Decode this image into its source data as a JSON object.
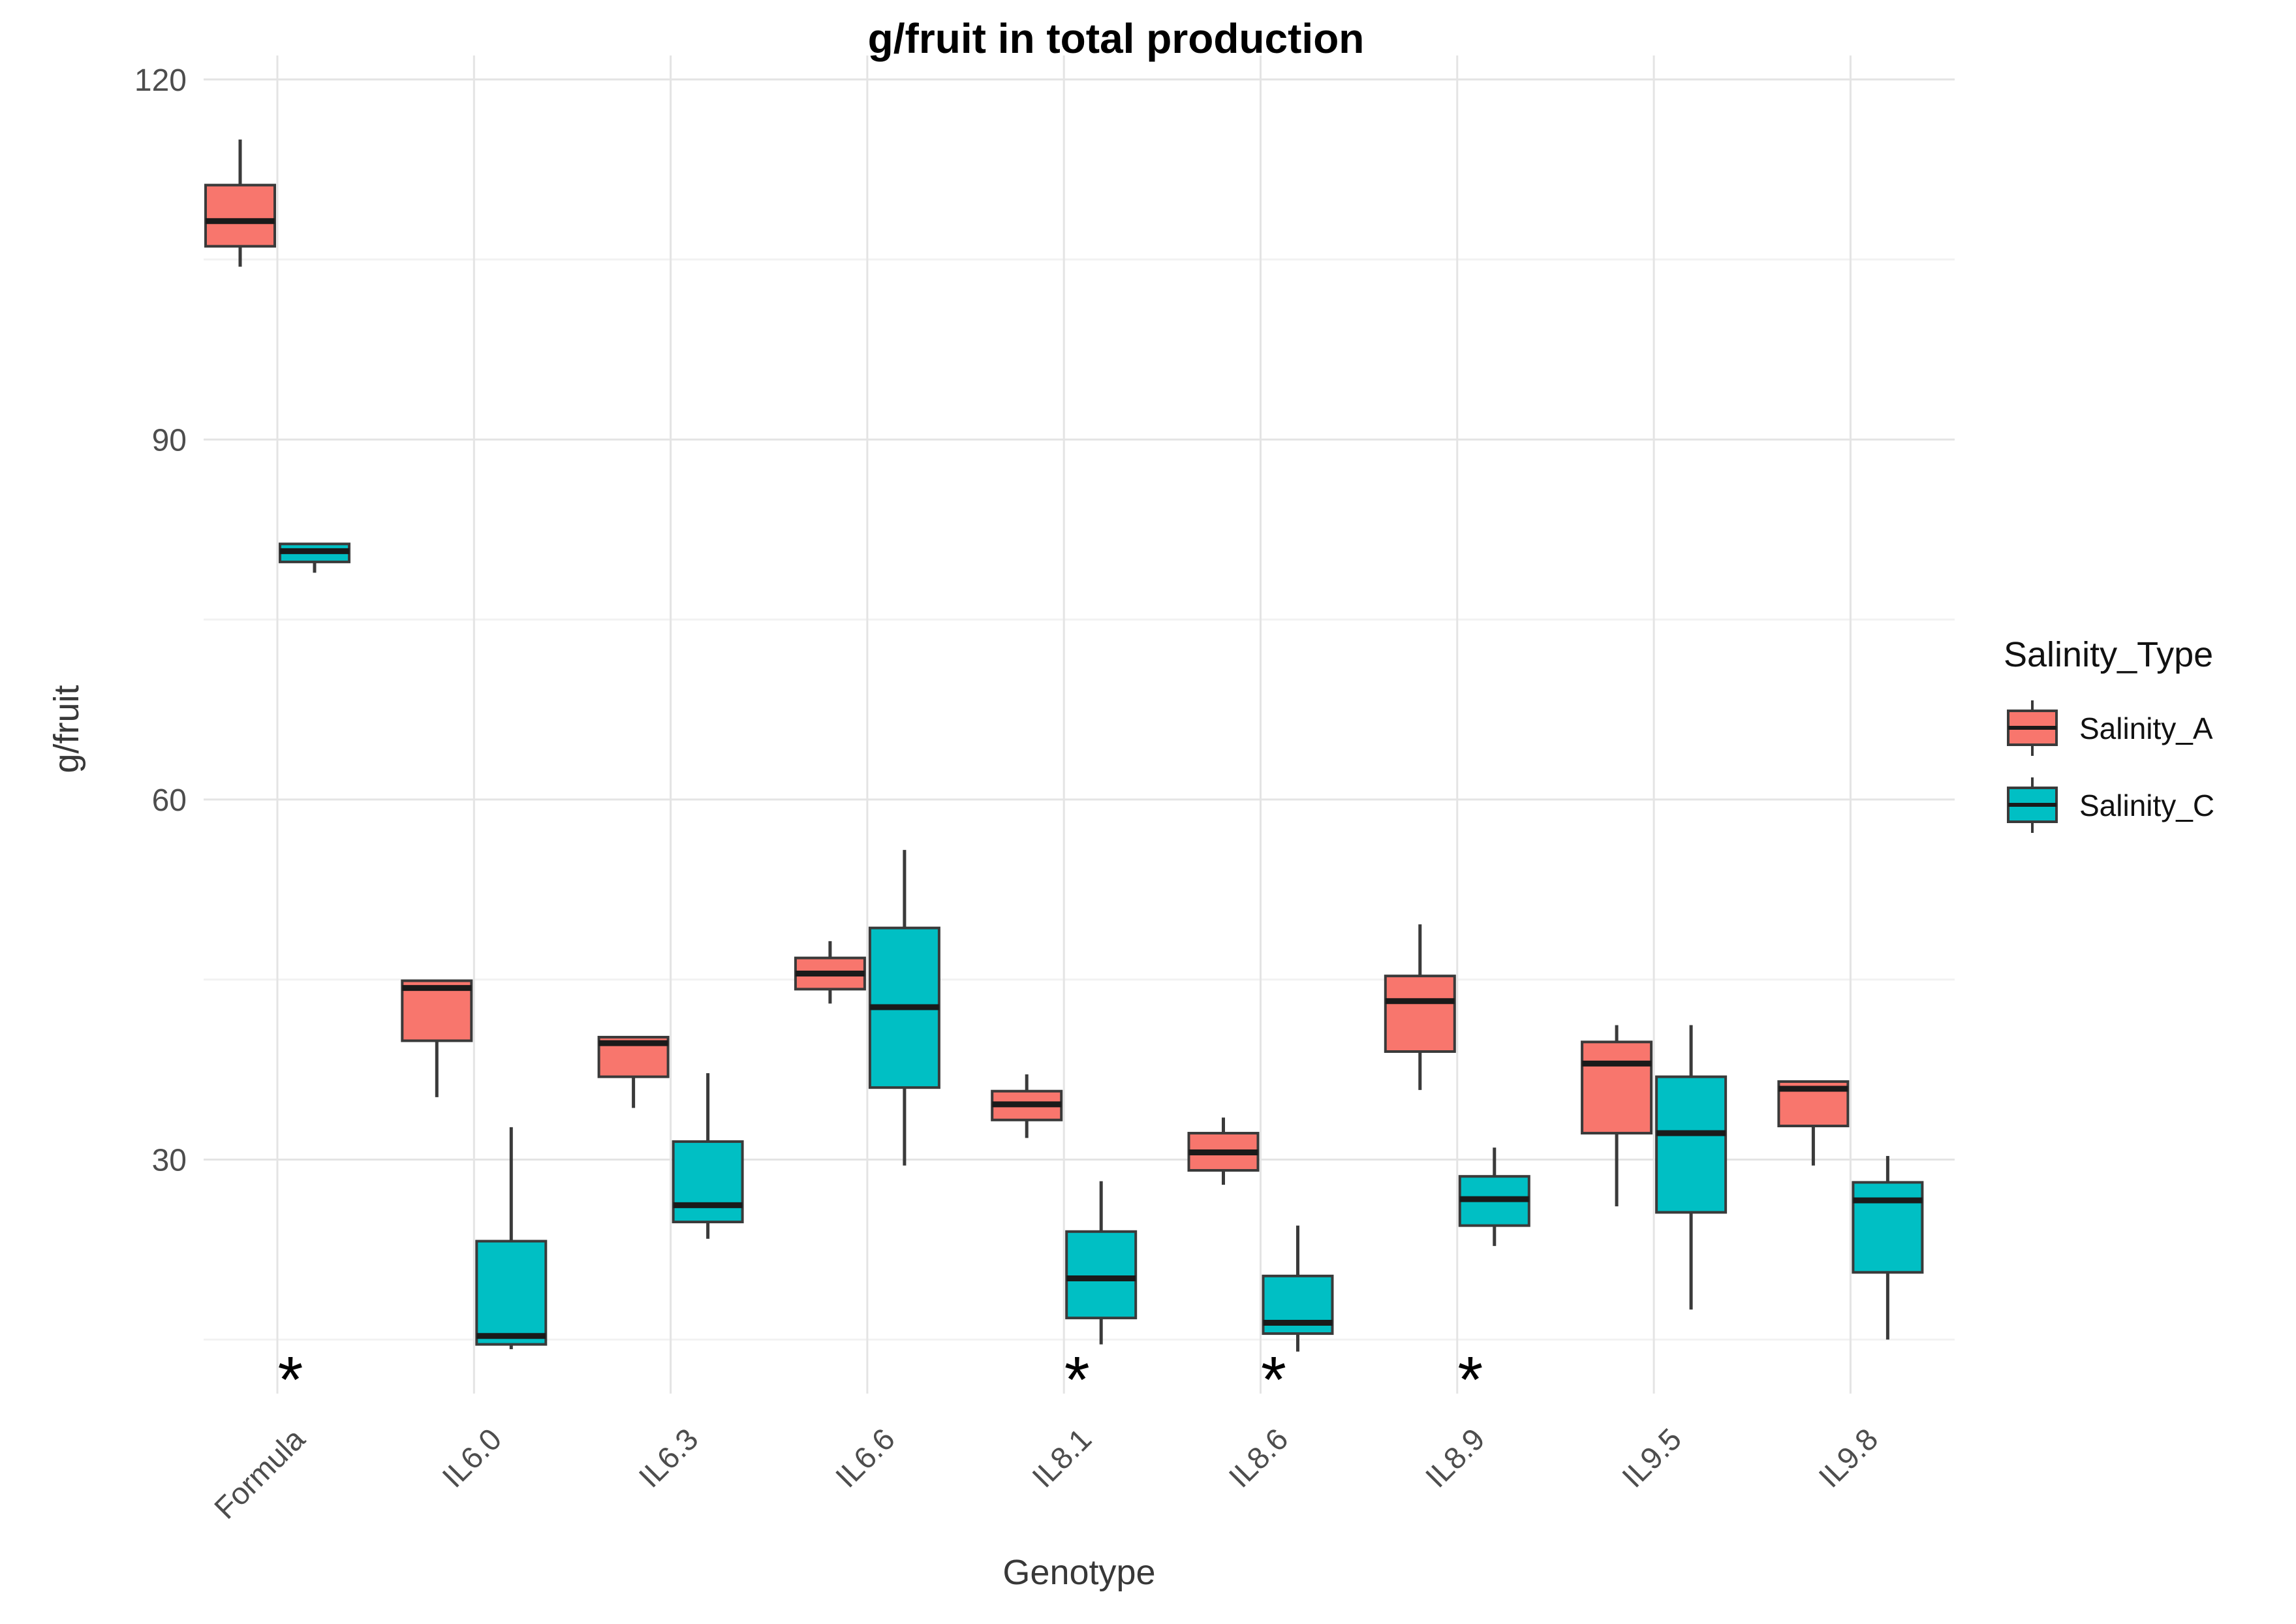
{
  "chart_data": {
    "type": "boxplot",
    "title": "g/fruit in total production",
    "xlabel": "Genotype",
    "ylabel": "g/fruit",
    "categories": [
      "Formula",
      "IL6.0",
      "IL6.3",
      "IL6.6",
      "IL8.1",
      "IL8.6",
      "IL8.9",
      "IL9.5",
      "IL9.8"
    ],
    "y_ticks": [
      30,
      60,
      90,
      120
    ],
    "y_minor_ticks": [
      15,
      45,
      75,
      105
    ],
    "ylim": [
      10.5,
      122
    ],
    "grid": true,
    "legend_position": "right",
    "legend": {
      "title": "Salinity_Type",
      "entries": [
        {
          "name": "Salinity_A",
          "color": "#F8766D"
        },
        {
          "name": "Salinity_C",
          "color": "#00BFC4"
        }
      ]
    },
    "series": [
      {
        "name": "Salinity_A",
        "color": "#F8766D",
        "boxes": [
          {
            "lo": 104.4,
            "q1": 106.1,
            "med": 108.2,
            "q3": 111.2,
            "hi": 115.0
          },
          {
            "lo": 35.2,
            "q1": 39.9,
            "med": 44.3,
            "q3": 44.9,
            "hi": 44.9
          },
          {
            "lo": 34.3,
            "q1": 36.9,
            "med": 39.7,
            "q3": 40.2,
            "hi": 40.2
          },
          {
            "lo": 43.0,
            "q1": 44.2,
            "med": 45.5,
            "q3": 46.8,
            "hi": 48.2
          },
          {
            "lo": 31.8,
            "q1": 33.3,
            "med": 34.6,
            "q3": 35.7,
            "hi": 37.1
          },
          {
            "lo": 27.9,
            "q1": 29.1,
            "med": 30.6,
            "q3": 32.2,
            "hi": 33.5
          },
          {
            "lo": 35.8,
            "q1": 39.0,
            "med": 43.2,
            "q3": 45.3,
            "hi": 49.6
          },
          {
            "lo": 26.1,
            "q1": 32.2,
            "med": 38.0,
            "q3": 39.8,
            "hi": 41.2
          },
          {
            "lo": 29.5,
            "q1": 32.8,
            "med": 35.9,
            "q3": 36.5,
            "hi": 36.5
          }
        ]
      },
      {
        "name": "Salinity_C",
        "color": "#00BFC4",
        "boxes": [
          {
            "lo": 78.9,
            "q1": 79.8,
            "med": 80.7,
            "q3": 81.3,
            "hi": 81.3
          },
          {
            "lo": 14.2,
            "q1": 14.6,
            "med": 15.3,
            "q3": 23.2,
            "hi": 32.7
          },
          {
            "lo": 23.4,
            "q1": 24.8,
            "med": 26.2,
            "q3": 31.5,
            "hi": 37.2
          },
          {
            "lo": 29.5,
            "q1": 36.0,
            "med": 42.7,
            "q3": 49.3,
            "hi": 55.8
          },
          {
            "lo": 14.6,
            "q1": 16.8,
            "med": 20.1,
            "q3": 24.0,
            "hi": 28.2
          },
          {
            "lo": 14.0,
            "q1": 15.5,
            "med": 16.4,
            "q3": 20.3,
            "hi": 24.5
          },
          {
            "lo": 22.8,
            "q1": 24.5,
            "med": 26.7,
            "q3": 28.6,
            "hi": 31.0
          },
          {
            "lo": 17.5,
            "q1": 25.6,
            "med": 32.2,
            "q3": 36.9,
            "hi": 41.2
          },
          {
            "lo": 15.0,
            "q1": 20.6,
            "med": 26.6,
            "q3": 28.1,
            "hi": 30.3
          }
        ]
      }
    ],
    "significance_marks": {
      "symbol": "*",
      "categories": [
        "Formula",
        "IL8.1",
        "IL8.6",
        "IL8.9"
      ]
    },
    "style": {
      "box_border_color": "#3A3A3A",
      "median_color": "#1A1A1A",
      "major_grid_color": "#E4E4E4",
      "minor_grid_color": "#F2F2F2",
      "tick_label_color": "#4D4D4D",
      "background": "#FFFFFF"
    }
  }
}
